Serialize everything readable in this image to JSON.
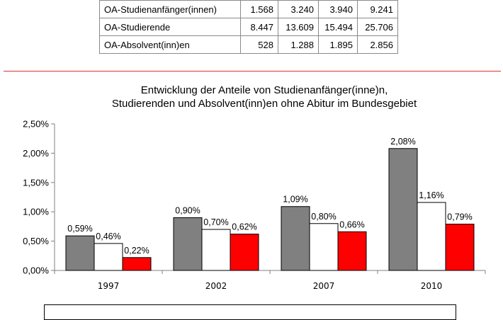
{
  "table": {
    "rows": [
      {
        "label": "OA-Studienanfänger(innen)",
        "values": [
          "1.568",
          "3.240",
          "3.940",
          "9.241"
        ]
      },
      {
        "label": "OA-Studierende",
        "values": [
          "8.447",
          "13.609",
          "15.494",
          "25.706"
        ]
      },
      {
        "label": "OA-Absolvent(inn)en",
        "values": [
          "528",
          "1.288",
          "1.895",
          "2.856"
        ]
      }
    ]
  },
  "chart_data": {
    "type": "bar",
    "title": "Entwicklung der  Anteile von Studienanfänger(inne)n,",
    "subtitle": "Studierenden und Absolvent(inn)en ohne Abitur im Bundesgebiet",
    "categories": [
      "1997",
      "2002",
      "2007",
      "2010"
    ],
    "series": [
      {
        "color": "#808080",
        "values": [
          0.59,
          0.9,
          1.09,
          2.08
        ],
        "labels": [
          "0,59%",
          "0,90%",
          "1,09%",
          "2,08%"
        ]
      },
      {
        "color": "#ffffff",
        "values": [
          0.46,
          0.7,
          0.8,
          1.16
        ],
        "labels": [
          "0,46%",
          "0,70%",
          "0,80%",
          "1,16%"
        ]
      },
      {
        "color": "#ff0000",
        "values": [
          0.22,
          0.62,
          0.66,
          0.79
        ],
        "labels": [
          "0,22%",
          "0,62%",
          "0,66%",
          "0,79%"
        ]
      }
    ],
    "ylim": [
      0,
      2.5
    ],
    "yticks": [
      "0,00%",
      "0,50%",
      "1,00%",
      "1,50%",
      "2,00%",
      "2,50%"
    ],
    "grid": false,
    "legend": "none"
  }
}
